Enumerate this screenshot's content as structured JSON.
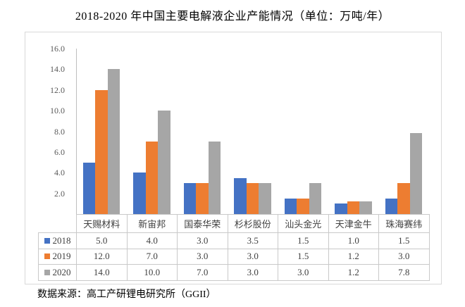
{
  "source_note": "数据来源：高工产研锂电研究所（GGII）",
  "chart_data": {
    "type": "bar",
    "title": "2018-2020 年中国主要电解液企业产能情况（单位：万吨/年）",
    "categories": [
      "天赐材料",
      "新宙邦",
      "国泰华荣",
      "杉杉股份",
      "汕头金光",
      "天津金牛",
      "珠海赛纬"
    ],
    "series": [
      {
        "name": "2018",
        "color": "#4472c4",
        "values": [
          5.0,
          4.0,
          3.0,
          3.5,
          1.5,
          1.0,
          1.5
        ]
      },
      {
        "name": "2019",
        "color": "#ed7d31",
        "values": [
          12.0,
          7.0,
          3.0,
          3.0,
          1.5,
          1.2,
          3.0
        ]
      },
      {
        "name": "2020",
        "color": "#a6a6a6",
        "values": [
          14.0,
          10.0,
          7.0,
          3.0,
          3.0,
          1.2,
          7.8
        ]
      }
    ],
    "ylim": [
      0,
      16
    ],
    "ytick_interval": 2,
    "ytick_labels": [
      "-",
      "2.0",
      "4.0",
      "6.0",
      "8.0",
      "10.0",
      "12.0",
      "14.0",
      "16.0"
    ],
    "grid": false,
    "legend_position": "table-left",
    "show_data_table": true,
    "value_decimals": 1
  }
}
